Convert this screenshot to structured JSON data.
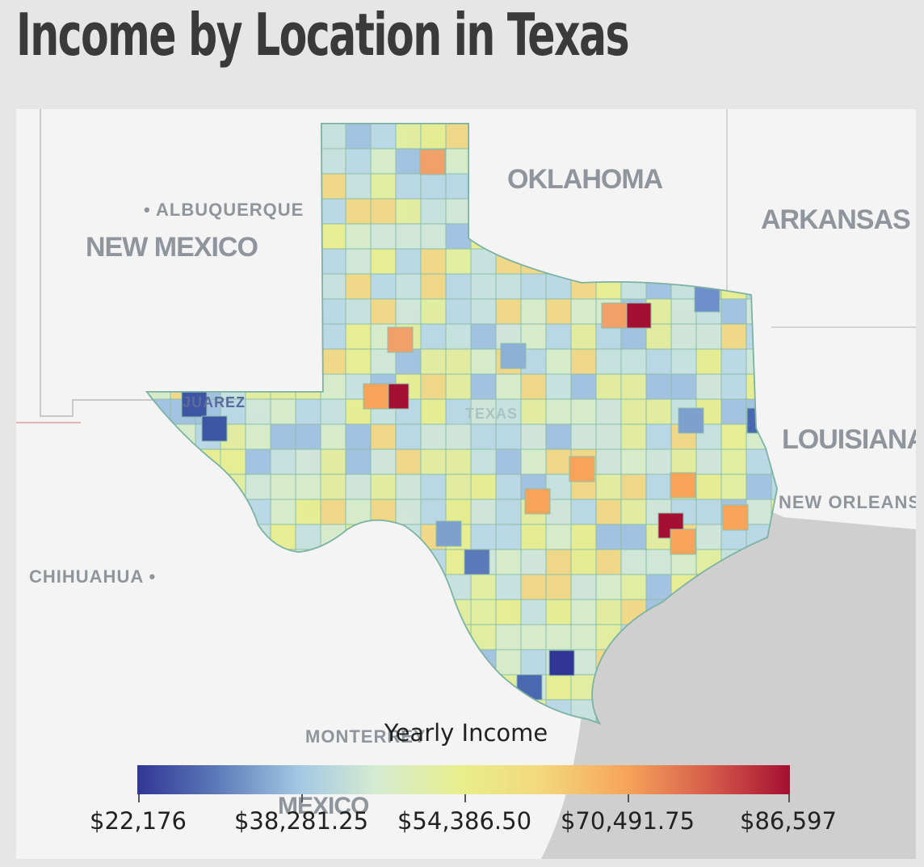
{
  "title": "Income by Location in Texas",
  "map_labels": {
    "oklahoma": "OKLAHOMA",
    "arkansas": "ARKANSAS",
    "new_mexico": "NEW MEXICO",
    "albuquerque": "• ALBUQUERQUE",
    "louisiana": "LOUISIANA",
    "new_orleans": "NEW ORLEANS",
    "chihuahua": "CHIHUAHUA •",
    "monterrey": "MONTERREY",
    "mexico": "MEXICO",
    "juarez": "JUAREZ",
    "texas": "TEXAS"
  },
  "legend": {
    "title": "Yearly Income",
    "ticks": [
      "$22,176",
      "$38,281.25",
      "$54,386.50",
      "$70,491.75",
      "$86,597"
    ],
    "min": 22176,
    "max": 86597,
    "colors": [
      "#313695",
      "#5b79b8",
      "#a5c8e4",
      "#d6ecd0",
      "#e8ee8a",
      "#f3d77d",
      "#f7a45a",
      "#d45a4a",
      "#a50f31"
    ]
  }
}
